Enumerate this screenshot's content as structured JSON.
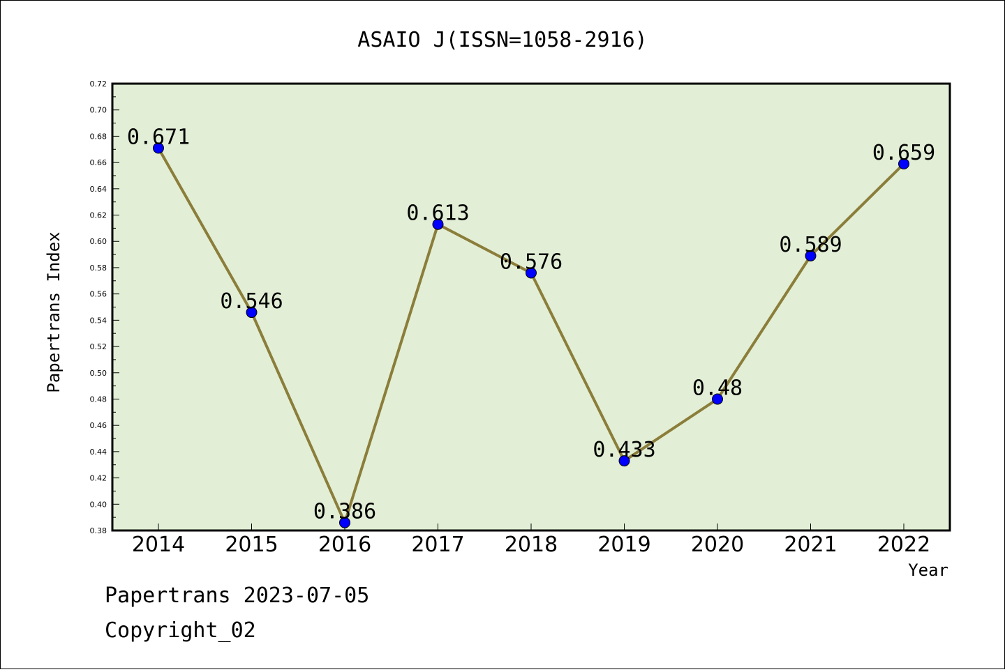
{
  "chart_data": {
    "type": "line",
    "title": "ASAIO J(ISSN=1058-2916)",
    "xlabel": "Year",
    "ylabel": "Papertrans Index",
    "categories": [
      "2014",
      "2015",
      "2016",
      "2017",
      "2018",
      "2019",
      "2020",
      "2021",
      "2022"
    ],
    "values": [
      0.671,
      0.546,
      0.386,
      0.613,
      0.576,
      0.433,
      0.48,
      0.589,
      0.659
    ],
    "data_labels": [
      "0.671",
      "0.546",
      "0.386",
      "0.613",
      "0.576",
      "0.433",
      "0.48",
      "0.589",
      "0.659"
    ],
    "ylim": [
      0.38,
      0.72
    ],
    "yticks": [
      "0.38",
      "0.40",
      "0.42",
      "0.44",
      "0.46",
      "0.48",
      "0.50",
      "0.52",
      "0.54",
      "0.56",
      "0.58",
      "0.60",
      "0.62",
      "0.64",
      "0.66",
      "0.68",
      "0.70",
      "0.72"
    ],
    "colors": {
      "plot_bg": "#e2efd6",
      "line": "#8b7d3a",
      "marker": "#0000ff"
    },
    "grid": false
  },
  "footer": {
    "line1": "Papertrans 2023-07-05",
    "line2": "Copyright_02"
  }
}
